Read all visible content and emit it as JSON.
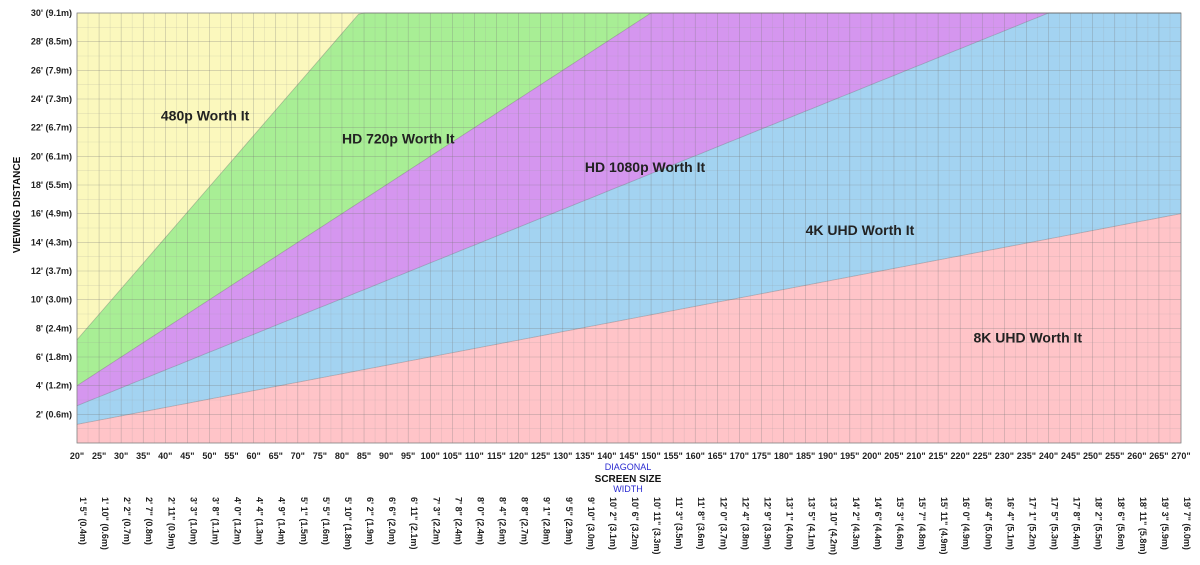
{
  "chart_data": {
    "type": "area",
    "xlabel": "SCREEN SIZE",
    "xlabel_top": "DIAGONAL",
    "xlabel_bottom": "WIDTH",
    "ylabel": "VIEWING DISTANCE",
    "xlim": [
      20,
      270
    ],
    "ylim": [
      0,
      30
    ],
    "grid": true,
    "x_ticks": [
      "20\"",
      "25\"",
      "30\"",
      "35\"",
      "40\"",
      "45\"",
      "50\"",
      "55\"",
      "60\"",
      "65\"",
      "70\"",
      "75\"",
      "80\"",
      "85\"",
      "90\"",
      "95\"",
      "100\"",
      "105\"",
      "110\"",
      "115\"",
      "120\"",
      "125\"",
      "130\"",
      "135\"",
      "140\"",
      "145\"",
      "150\"",
      "155\"",
      "160\"",
      "165\"",
      "170\"",
      "175\"",
      "180\"",
      "185\"",
      "190\"",
      "195\"",
      "200\"",
      "205\"",
      "210\"",
      "215\"",
      "220\"",
      "225\"",
      "230\"",
      "235\"",
      "240\"",
      "245\"",
      "250\"",
      "255\"",
      "260\"",
      "265\"",
      "270\""
    ],
    "x_tick_values": [
      20,
      25,
      30,
      35,
      40,
      45,
      50,
      55,
      60,
      65,
      70,
      75,
      80,
      85,
      90,
      95,
      100,
      105,
      110,
      115,
      120,
      125,
      130,
      135,
      140,
      145,
      150,
      155,
      160,
      165,
      170,
      175,
      180,
      185,
      190,
      195,
      200,
      205,
      210,
      215,
      220,
      225,
      230,
      235,
      240,
      245,
      250,
      255,
      260,
      265,
      270
    ],
    "width_ticks": [
      "1' 5\" (0.4m)",
      "1' 10\" (0.6m)",
      "2' 2\" (0.7m)",
      "2' 7\" (0.8m)",
      "2' 11\" (0.9m)",
      "3' 3\" (1.0m)",
      "3' 8\" (1.1m)",
      "4' 0\" (1.2m)",
      "4' 4\" (1.3m)",
      "4' 9\" (1.4m)",
      "5' 1\" (1.5m)",
      "5' 5\" (1.6m)",
      "5' 10\" (1.8m)",
      "6' 2\" (1.9m)",
      "6' 6\" (2.0m)",
      "6' 11\" (2.1m)",
      "7' 3\" (2.2m)",
      "7' 8\" (2.4m)",
      "8' 0\" (2.4m)",
      "8' 4\" (2.6m)",
      "8' 8\" (2.7m)",
      "9' 1\" (2.8m)",
      "9' 5\" (2.9m)",
      "9' 10\" (3.0m)",
      "10' 2\" (3.1m)",
      "10' 6\" (3.2m)",
      "10' 11\" (3.3m)",
      "11' 3\" (3.5m)",
      "11' 8\" (3.6m)",
      "12' 0\" (3.7m)",
      "12' 4\" (3.8m)",
      "12' 9\" (3.9m)",
      "13' 1\" (4.0m)",
      "13' 5\" (4.1m)",
      "13' 10\" (4.2m)",
      "14' 2\" (4.3m)",
      "14' 6\" (4.4m)",
      "15' 3\" (4.6m)",
      "15' 7\" (4.8m)",
      "15' 11\" (4.9m)",
      "16' 0\" (4.9m)",
      "16' 4\" (5.0m)",
      "16' 4\" (5.1m)",
      "17' 1\" (5.2m)",
      "17' 5\" (5.3m)",
      "17' 8\" (5.4m)",
      "18' 2\" (5.5m)",
      "18' 6\" (5.6m)",
      "18' 11\" (5.8m)",
      "19' 3\" (5.9m)",
      "19' 7\" (6.0m)"
    ],
    "y_ticks": [
      "2' (0.6m)",
      "4' (1.2m)",
      "6' (1.8m)",
      "8' (2.4m)",
      "10' (3.0m)",
      "12' (3.7m)",
      "14' (4.3m)",
      "16' (4.9m)",
      "18' (5.5m)",
      "20' (6.1m)",
      "22' (6.7m)",
      "24' (7.3m)",
      "26' (7.9m)",
      "28' (8.5m)",
      "30' (9.1m)"
    ],
    "y_tick_values": [
      2,
      4,
      6,
      8,
      10,
      12,
      14,
      16,
      18,
      20,
      22,
      24,
      26,
      28,
      30
    ],
    "boundaries": [
      {
        "between": "480p / 720p",
        "points": [
          [
            20,
            7.2
          ],
          [
            84,
            30
          ]
        ]
      },
      {
        "between": "720p / 1080p",
        "points": [
          [
            20,
            4.0
          ],
          [
            150,
            30
          ]
        ]
      },
      {
        "between": "1080p / 4K",
        "points": [
          [
            20,
            2.6
          ],
          [
            240,
            30
          ]
        ]
      },
      {
        "between": "4K / 8K",
        "points": [
          [
            20,
            1.3
          ],
          [
            270,
            16.0
          ]
        ]
      }
    ],
    "regions": [
      {
        "name": "480p Worth It",
        "color": "#fbf8bd",
        "label_at": [
          39,
          22.5
        ]
      },
      {
        "name": "HD 720p Worth It",
        "color": "#a8ee95",
        "label_at": [
          80,
          20.9
        ]
      },
      {
        "name": "HD 1080p Worth It",
        "color": "#d596ef",
        "label_at": [
          135,
          18.9
        ]
      },
      {
        "name": "4K UHD Worth It",
        "color": "#a3d3f1",
        "label_at": [
          185,
          14.5
        ]
      },
      {
        "name": "8K UHD Worth It",
        "color": "#ffc4c8",
        "label_at": [
          223,
          7.0
        ]
      }
    ]
  }
}
